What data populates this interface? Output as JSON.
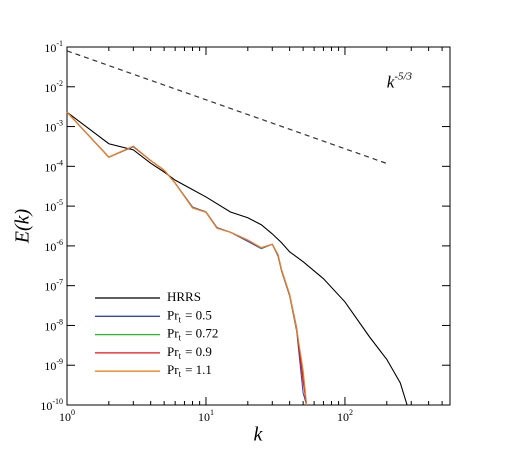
{
  "chart_data": {
    "type": "line",
    "x_label": "k",
    "y_label": "E(k)",
    "log_x": true,
    "log_y": true,
    "xlim": [
      1,
      570
    ],
    "ylim": [
      1e-10,
      0.1
    ],
    "xticks": [
      {
        "value": 1,
        "label": "10",
        "exponent": "0"
      },
      {
        "value": 10,
        "label": "10",
        "exponent": "1"
      },
      {
        "value": 100,
        "label": "10",
        "exponent": "2"
      }
    ],
    "xminor_ticks": [
      2,
      3,
      4,
      5,
      6,
      7,
      8,
      9,
      20,
      30,
      40,
      50,
      60,
      70,
      80,
      90,
      200,
      300,
      400,
      500
    ],
    "yticks": [
      {
        "value": 0.1,
        "label": "10",
        "exponent": "-1"
      },
      {
        "value": 0.01,
        "label": "10",
        "exponent": "-2"
      },
      {
        "value": 0.001,
        "label": "10",
        "exponent": "-3"
      },
      {
        "value": 0.0001,
        "label": "10",
        "exponent": "-4"
      },
      {
        "value": 1e-05,
        "label": "10",
        "exponent": "-5"
      },
      {
        "value": 1e-06,
        "label": "10",
        "exponent": "-6"
      },
      {
        "value": 1e-07,
        "label": "10",
        "exponent": "-7"
      },
      {
        "value": 1e-08,
        "label": "10",
        "exponent": "-8"
      },
      {
        "value": 1e-09,
        "label": "10",
        "exponent": "-9"
      },
      {
        "value": 1e-10,
        "label": "10",
        "exponent": "-10"
      }
    ],
    "reference_line": {
      "x": [
        1,
        200
      ],
      "values": [
        0.08,
        0.000118
      ],
      "color": "#333333",
      "dashed": true,
      "annotation": {
        "text": "k",
        "exponent": "-5/3",
        "x": 200,
        "y": 0.012
      }
    },
    "series": [
      {
        "name": "HRRS",
        "color": "#000000",
        "x": [
          1,
          2,
          3,
          4,
          5,
          6,
          8,
          10,
          15,
          20,
          25,
          30,
          35,
          40,
          50,
          70,
          100,
          150,
          200,
          250,
          280
        ],
        "values": [
          0.0023,
          0.00037,
          0.00026,
          0.00012,
          7.2e-05,
          4.5e-05,
          2.6e-05,
          1.7e-05,
          7.1e-06,
          5.1e-06,
          3.4e-06,
          2e-06,
          1.2e-06,
          7.1e-07,
          4e-07,
          1.5e-07,
          3.9e-08,
          5.2e-09,
          1.4e-09,
          3.6e-10,
          1e-10
        ]
      },
      {
        "name": "Pr",
        "subscript": "t",
        "suffix": "= 0.5",
        "color": "#3344cc",
        "x": [
          1,
          2,
          3,
          4,
          5,
          6,
          8,
          10,
          12,
          15,
          20,
          25,
          30,
          33,
          35,
          40,
          45,
          50,
          53
        ],
        "values": [
          0.0023,
          0.00017,
          0.00031,
          0.00014,
          8e-05,
          3.8e-05,
          9.5e-06,
          7.2e-06,
          2.9e-06,
          2.2e-06,
          1.3e-06,
          8.5e-07,
          1.1e-06,
          5.5e-07,
          2.3e-07,
          5.5e-08,
          7e-09,
          2e-10,
          1e-10
        ]
      },
      {
        "name": "Pr",
        "subscript": "t",
        "suffix": "= 0.72",
        "color": "#22bb22",
        "x": [
          1,
          2,
          3,
          4,
          5,
          6,
          8,
          10,
          12,
          15,
          20,
          25,
          30,
          33,
          35,
          40,
          45,
          50,
          53
        ],
        "values": [
          0.0023,
          0.00017,
          0.00032,
          0.00014,
          8e-05,
          3.8e-05,
          9.2e-06,
          7.1e-06,
          2.8e-06,
          2.2e-06,
          1.4e-06,
          8.8e-07,
          1.1e-06,
          5.8e-07,
          2.4e-07,
          5.8e-08,
          7.5e-09,
          5e-10,
          1e-10
        ]
      },
      {
        "name": "Pr",
        "subscript": "t",
        "suffix": "= 0.9",
        "color": "#ee1111",
        "x": [
          1,
          2,
          3,
          4,
          5,
          6,
          8,
          10,
          12,
          15,
          20,
          25,
          30,
          33,
          35,
          40,
          45,
          50,
          53
        ],
        "values": [
          0.0023,
          0.00017,
          0.00032,
          0.00014,
          8e-05,
          3.8e-05,
          9e-06,
          7e-06,
          2.8e-06,
          2.2e-06,
          1.4e-06,
          9e-07,
          1.1e-06,
          6e-07,
          2.5e-07,
          6e-08,
          8.5e-09,
          4e-10,
          1e-10
        ]
      },
      {
        "name": "Pr",
        "subscript": "t",
        "suffix": "= 1.1",
        "color": "#f08020",
        "x": [
          1,
          2,
          3,
          4,
          5,
          6,
          8,
          10,
          12,
          15,
          20,
          25,
          30,
          33,
          35,
          40,
          45,
          50,
          53
        ],
        "values": [
          0.0023,
          0.00017,
          0.00032,
          0.00014,
          8e-05,
          3.8e-05,
          9e-06,
          7e-06,
          2.8e-06,
          2.2e-06,
          1.4e-06,
          9e-07,
          1.1e-06,
          6e-07,
          2.5e-07,
          6e-08,
          8e-09,
          7.5e-10,
          1e-10
        ]
      }
    ]
  }
}
